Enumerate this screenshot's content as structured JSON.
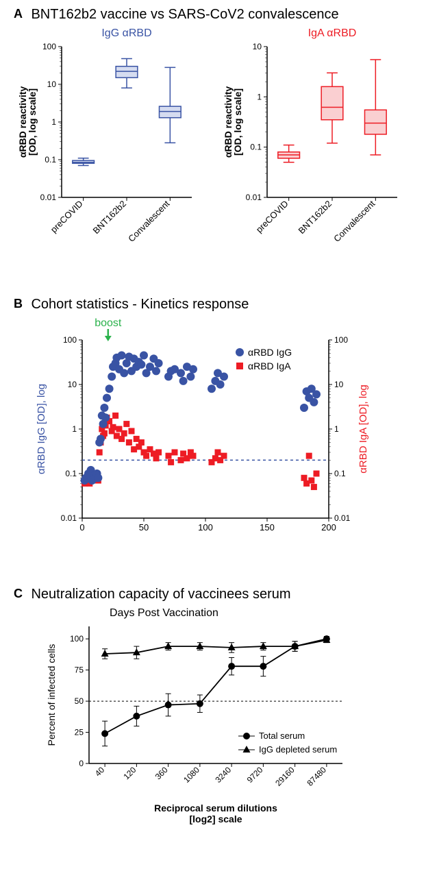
{
  "panelA": {
    "label": "A",
    "title": "BNT162b2 vaccine vs SARS-CoV2 convalescence",
    "left": {
      "title": "IgG αRBD",
      "title_color": "#3953a4",
      "ylabel": "αRBD reactivity\n[OD, log scale]",
      "ylim": [
        0.01,
        100
      ],
      "yticks": [
        0.01,
        0.1,
        1,
        10,
        100
      ],
      "categories": [
        "preCOVID",
        "BNT162b2",
        "Convalescent"
      ],
      "boxes": [
        {
          "min": 0.07,
          "q1": 0.08,
          "med": 0.085,
          "q3": 0.095,
          "max": 0.11
        },
        {
          "min": 8,
          "q1": 15,
          "med": 22,
          "q3": 30,
          "max": 48
        },
        {
          "min": 0.28,
          "q1": 1.3,
          "med": 1.9,
          "q3": 2.6,
          "max": 28
        }
      ],
      "stroke": "#3953a4",
      "fill": "#d5dcf0"
    },
    "right": {
      "title": "IgA αRBD",
      "title_color": "#ed1c24",
      "ylabel": "αRBD reactivity\n[OD, log scale]",
      "ylim": [
        0.01,
        10
      ],
      "yticks": [
        0.01,
        0.1,
        1,
        10
      ],
      "categories": [
        "preCOVID",
        "BNT162b2",
        "Convalescent"
      ],
      "boxes": [
        {
          "min": 0.05,
          "q1": 0.06,
          "med": 0.07,
          "q3": 0.08,
          "max": 0.11
        },
        {
          "min": 0.12,
          "q1": 0.35,
          "med": 0.62,
          "q3": 1.6,
          "max": 3.0
        },
        {
          "min": 0.07,
          "q1": 0.18,
          "med": 0.3,
          "q3": 0.55,
          "max": 5.5
        }
      ],
      "stroke": "#ed1c24",
      "fill": "#facfd1"
    }
  },
  "panelB": {
    "label": "B",
    "title": "Cohort statistics - Kinetics response",
    "boost_label": "boost",
    "boost_color": "#2bb24c",
    "boost_x": 21,
    "xlabel": "",
    "ylabel_left": "αRBD IgG  [OD], log",
    "ylabel_left_color": "#3953a4",
    "ylabel_right": "αRBD IgA [OD], log",
    "ylabel_right_color": "#ed1c24",
    "xlim": [
      0,
      200
    ],
    "xticks": [
      0,
      50,
      100,
      150,
      200
    ],
    "ylim": [
      0.01,
      100
    ],
    "yticks": [
      0.01,
      0.1,
      1,
      10,
      100
    ],
    "threshold": 0.2,
    "threshold_color": "#3953a4",
    "legend": [
      {
        "label": "αRBD IgG",
        "marker": "circle",
        "color": "#3953a4"
      },
      {
        "label": "αRBD IgA",
        "marker": "square",
        "color": "#ed1c24"
      }
    ],
    "igg_color": "#3953a4",
    "iga_color": "#ed1c24",
    "igg_points": [
      [
        2,
        0.07
      ],
      [
        3,
        0.08
      ],
      [
        5,
        0.1
      ],
      [
        6,
        0.09
      ],
      [
        7,
        0.12
      ],
      [
        8,
        0.07
      ],
      [
        10,
        0.09
      ],
      [
        11,
        0.08
      ],
      [
        12,
        0.1
      ],
      [
        13,
        0.08
      ],
      [
        14,
        0.5
      ],
      [
        15,
        0.6
      ],
      [
        16,
        2
      ],
      [
        17,
        1.3
      ],
      [
        18,
        3
      ],
      [
        19,
        1.8
      ],
      [
        20,
        5
      ],
      [
        22,
        8
      ],
      [
        24,
        15
      ],
      [
        25,
        25
      ],
      [
        27,
        30
      ],
      [
        28,
        40
      ],
      [
        30,
        22
      ],
      [
        32,
        45
      ],
      [
        34,
        18
      ],
      [
        36,
        30
      ],
      [
        38,
        42
      ],
      [
        40,
        20
      ],
      [
        42,
        38
      ],
      [
        44,
        25
      ],
      [
        46,
        32
      ],
      [
        48,
        28
      ],
      [
        50,
        45
      ],
      [
        52,
        18
      ],
      [
        55,
        25
      ],
      [
        58,
        38
      ],
      [
        60,
        20
      ],
      [
        62,
        30
      ],
      [
        70,
        15
      ],
      [
        72,
        20
      ],
      [
        75,
        22
      ],
      [
        80,
        18
      ],
      [
        82,
        12
      ],
      [
        85,
        25
      ],
      [
        88,
        15
      ],
      [
        90,
        22
      ],
      [
        105,
        8
      ],
      [
        108,
        12
      ],
      [
        110,
        18
      ],
      [
        112,
        10
      ],
      [
        115,
        15
      ],
      [
        180,
        3
      ],
      [
        182,
        7
      ],
      [
        184,
        5
      ],
      [
        186,
        8
      ],
      [
        188,
        4
      ],
      [
        190,
        6
      ]
    ],
    "iga_points": [
      [
        2,
        0.06
      ],
      [
        3,
        0.07
      ],
      [
        5,
        0.08
      ],
      [
        6,
        0.06
      ],
      [
        7,
        0.09
      ],
      [
        8,
        0.07
      ],
      [
        10,
        0.1
      ],
      [
        11,
        0.08
      ],
      [
        12,
        0.09
      ],
      [
        13,
        0.07
      ],
      [
        14,
        0.3
      ],
      [
        15,
        0.5
      ],
      [
        16,
        1.0
      ],
      [
        17,
        0.7
      ],
      [
        18,
        0.8
      ],
      [
        19,
        1.2
      ],
      [
        20,
        1.8
      ],
      [
        22,
        1.5
      ],
      [
        24,
        0.9
      ],
      [
        25,
        1.1
      ],
      [
        27,
        2.0
      ],
      [
        28,
        0.7
      ],
      [
        30,
        1.0
      ],
      [
        32,
        0.6
      ],
      [
        34,
        0.8
      ],
      [
        36,
        1.3
      ],
      [
        38,
        0.5
      ],
      [
        40,
        0.9
      ],
      [
        42,
        0.35
      ],
      [
        44,
        0.6
      ],
      [
        46,
        0.4
      ],
      [
        48,
        0.5
      ],
      [
        50,
        0.3
      ],
      [
        52,
        0.25
      ],
      [
        55,
        0.35
      ],
      [
        58,
        0.28
      ],
      [
        60,
        0.22
      ],
      [
        62,
        0.3
      ],
      [
        70,
        0.25
      ],
      [
        72,
        0.18
      ],
      [
        75,
        0.3
      ],
      [
        80,
        0.2
      ],
      [
        82,
        0.28
      ],
      [
        85,
        0.22
      ],
      [
        88,
        0.3
      ],
      [
        90,
        0.25
      ],
      [
        105,
        0.18
      ],
      [
        108,
        0.22
      ],
      [
        110,
        0.3
      ],
      [
        112,
        0.2
      ],
      [
        115,
        0.25
      ],
      [
        180,
        0.08
      ],
      [
        182,
        0.06
      ],
      [
        184,
        0.25
      ],
      [
        186,
        0.07
      ],
      [
        188,
        0.05
      ],
      [
        190,
        0.1
      ]
    ]
  },
  "panelC": {
    "label": "C",
    "title": "Neutralization capacity of vaccinees serum",
    "subtitle": "Days Post Vaccination",
    "xlabel": "Reciprocal serum dilutions\n[log2] scale",
    "ylabel": "Percent of infected cells",
    "xticks": [
      "40",
      "120",
      "360",
      "1080",
      "3240",
      "9720",
      "29160",
      "87480"
    ],
    "yticks": [
      0,
      25,
      50,
      75,
      100
    ],
    "ylim": [
      0,
      110
    ],
    "threshold": 50,
    "legend": [
      {
        "label": "Total serum",
        "marker": "circle",
        "color": "#000000"
      },
      {
        "label": "IgG depleted serum",
        "marker": "triangle",
        "color": "#000000"
      }
    ],
    "series_total": {
      "color": "#000000",
      "marker": "circle",
      "points": [
        {
          "x": 0,
          "y": 24,
          "err": 10
        },
        {
          "x": 1,
          "y": 38,
          "err": 8
        },
        {
          "x": 2,
          "y": 47,
          "err": 9
        },
        {
          "x": 3,
          "y": 48,
          "err": 7
        },
        {
          "x": 4,
          "y": 78,
          "err": 7
        },
        {
          "x": 5,
          "y": 78,
          "err": 8
        },
        {
          "x": 6,
          "y": 94,
          "err": 4
        },
        {
          "x": 7,
          "y": 100,
          "err": 2
        }
      ]
    },
    "series_depleted": {
      "color": "#000000",
      "marker": "triangle",
      "points": [
        {
          "x": 0,
          "y": 88,
          "err": 4
        },
        {
          "x": 1,
          "y": 89,
          "err": 5
        },
        {
          "x": 2,
          "y": 94,
          "err": 3
        },
        {
          "x": 3,
          "y": 94,
          "err": 3
        },
        {
          "x": 4,
          "y": 93,
          "err": 4
        },
        {
          "x": 5,
          "y": 94,
          "err": 3
        },
        {
          "x": 6,
          "y": 94,
          "err": 4
        },
        {
          "x": 7,
          "y": 99,
          "err": 2
        }
      ]
    }
  }
}
